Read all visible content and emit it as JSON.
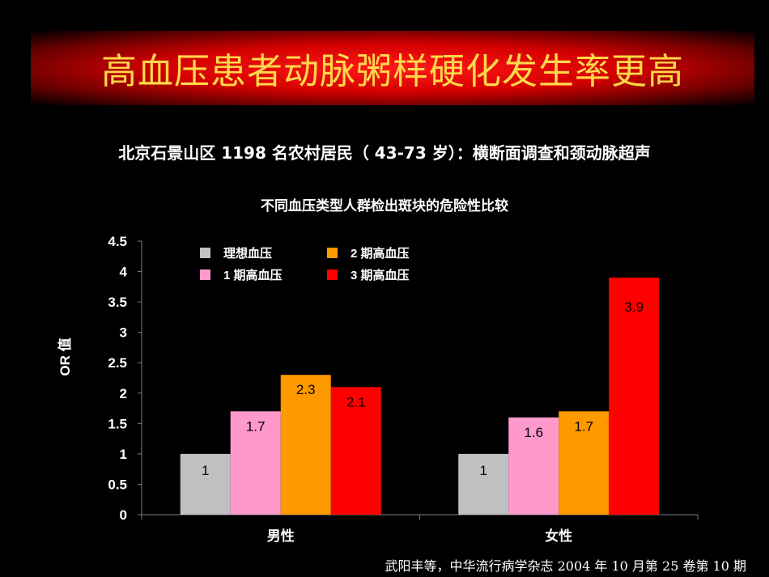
{
  "banner": {
    "title": "高血压患者动脉粥样硬化发生率更高"
  },
  "subtitle": "北京石景山区 1198 名农村居民（ 43-73 岁）：横断面调查和颈动脉超声",
  "citation": "武阳丰等，中华流行病学杂志 2004 年 10 月第 25 卷第 10 期",
  "colors": {
    "background": "#000000",
    "title_text": "#ffd84a",
    "banner": "#d40000"
  },
  "chart_data": {
    "type": "bar",
    "title": "不同血压类型人群检出斑块的危险性比较",
    "ylabel": "OR 值",
    "xlabel": "",
    "ylim": [
      0,
      4.5
    ],
    "yticks": [
      "0",
      "0.5",
      "1",
      "1.5",
      "2",
      "2.5",
      "3",
      "3.5",
      "4",
      "4.5"
    ],
    "categories": [
      "男性",
      "女性"
    ],
    "legend_position": "top-left",
    "series": [
      {
        "name": "理想血压",
        "color": "#c0c0c0",
        "values": [
          1,
          1
        ],
        "labels": [
          "1",
          "1"
        ]
      },
      {
        "name": "1 期高血压",
        "color": "#ff99cc",
        "values": [
          1.7,
          1.6
        ],
        "labels": [
          "1.7",
          "1.6"
        ]
      },
      {
        "name": "2 期高血压",
        "color": "#ff9900",
        "values": [
          2.3,
          1.7
        ],
        "labels": [
          "2.3",
          "1.7"
        ]
      },
      {
        "name": "3 期高血压",
        "color": "#ff0000",
        "values": [
          2.1,
          3.9
        ],
        "labels": [
          "2.1",
          "3.9"
        ]
      }
    ]
  }
}
